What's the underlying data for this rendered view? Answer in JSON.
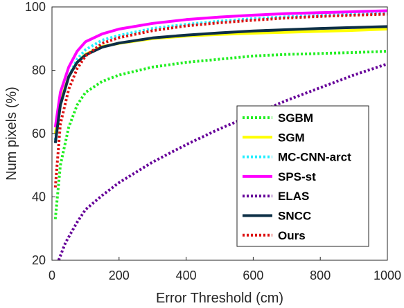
{
  "chart_data": {
    "type": "line",
    "xlabel": "Error Threshold (cm)",
    "ylabel": "Num pixels (%)",
    "xlim": [
      0,
      1000
    ],
    "ylim": [
      20,
      100
    ],
    "xticks": [
      "0",
      "200",
      "400",
      "600",
      "800",
      "1000"
    ],
    "yticks": [
      "20",
      "40",
      "60",
      "80",
      "100"
    ],
    "grid": false,
    "legend_position": "bottom-right",
    "series": [
      {
        "name": "SGBM",
        "color": "#22ee22",
        "style": "dotted",
        "x": [
          10,
          25,
          50,
          75,
          100,
          150,
          200,
          300,
          400,
          500,
          600,
          700,
          800,
          900,
          1000
        ],
        "y": [
          33,
          50,
          62,
          69,
          73,
          76.5,
          78.5,
          81,
          82.5,
          83.5,
          84.5,
          85,
          85.3,
          85.6,
          86
        ]
      },
      {
        "name": "SGM",
        "color": "#ffff00",
        "style": "solid",
        "x": [
          10,
          25,
          50,
          75,
          100,
          150,
          200,
          300,
          400,
          500,
          600,
          700,
          800,
          900,
          1000
        ],
        "y": [
          60,
          70,
          78,
          82.5,
          85,
          87.5,
          88.5,
          90,
          90.8,
          91.3,
          91.7,
          92,
          92.3,
          92.6,
          93
        ]
      },
      {
        "name": "MC-CNN-arct",
        "color": "#22eeff",
        "style": "dotted",
        "x": [
          10,
          25,
          50,
          75,
          100,
          150,
          200,
          300,
          400,
          500,
          600,
          700,
          800,
          900,
          1000
        ],
        "y": [
          58,
          69,
          78,
          83.5,
          86.5,
          89.5,
          91,
          93.2,
          94.5,
          95.5,
          96.3,
          96.9,
          97.3,
          97.7,
          98
        ]
      },
      {
        "name": "SPS-st",
        "color": "#ff00ff",
        "style": "solid",
        "x": [
          10,
          25,
          50,
          75,
          100,
          150,
          200,
          300,
          400,
          500,
          600,
          700,
          800,
          900,
          1000
        ],
        "y": [
          62,
          73,
          81,
          86,
          89,
          91.5,
          93,
          94.8,
          96,
          96.8,
          97.4,
          97.9,
          98.2,
          98.5,
          98.8
        ]
      },
      {
        "name": "ELAS",
        "color": "#660099",
        "style": "dotted",
        "x": [
          20,
          40,
          75,
          100,
          150,
          200,
          300,
          400,
          500,
          600,
          700,
          800,
          900,
          1000
        ],
        "y": [
          20,
          25.5,
          32,
          36,
          40.5,
          44.5,
          51,
          56.5,
          61.5,
          66,
          70.5,
          74.5,
          78.5,
          82
        ]
      },
      {
        "name": "SNCC",
        "color": "#0d2f46",
        "style": "solid",
        "x": [
          10,
          25,
          50,
          75,
          100,
          150,
          200,
          300,
          400,
          500,
          600,
          700,
          800,
          900,
          1000
        ],
        "y": [
          57,
          69,
          78,
          82.5,
          84.8,
          87.3,
          88.6,
          90.2,
          91.1,
          91.8,
          92.4,
          92.8,
          93.2,
          93.5,
          93.8
        ]
      },
      {
        "name": "Ours",
        "color": "#dd1111",
        "style": "dotted",
        "x": [
          10,
          25,
          50,
          75,
          100,
          150,
          200,
          300,
          400,
          500,
          600,
          700,
          800,
          900,
          1000
        ],
        "y": [
          43,
          63,
          74,
          80.5,
          84.5,
          88.5,
          90.3,
          92.5,
          94,
          95,
          95.8,
          96.5,
          97,
          97.4,
          97.7
        ]
      }
    ]
  }
}
